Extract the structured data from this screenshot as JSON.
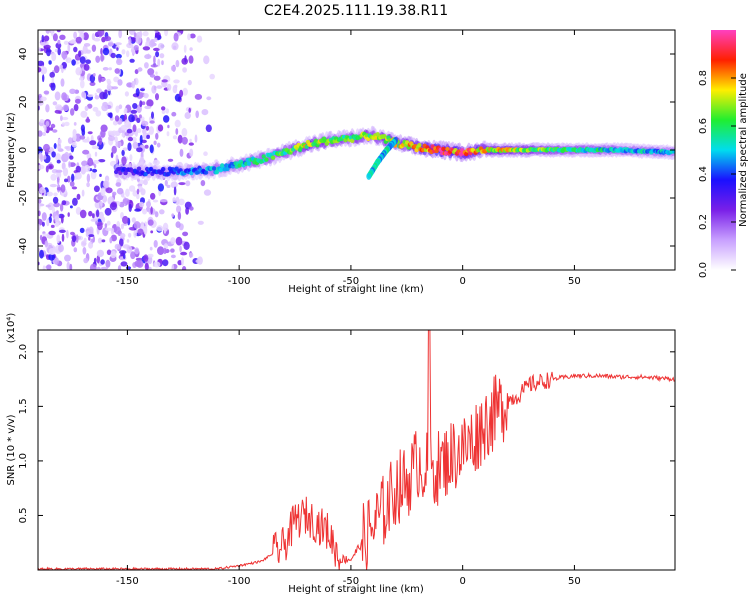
{
  "title": "C2E4.2025.111.19.38.R11",
  "chart_data": [
    {
      "type": "heatmap",
      "xlabel": "Height of straight line (km)",
      "ylabel": "Frequency (Hz)",
      "xlim": [
        -190,
        95
      ],
      "ylim": [
        -50,
        50
      ],
      "x_ticks": [
        -150,
        -100,
        -50,
        0,
        50
      ],
      "y_ticks": [
        -40,
        -20,
        0,
        20,
        40
      ],
      "colorbar": {
        "label": "Normalized spectral amplitude",
        "range": [
          0,
          1
        ],
        "ticks": [
          0.0,
          0.2,
          0.4,
          0.6,
          0.8
        ],
        "colors": [
          "#ffffff",
          "#c8a0ff",
          "#7a20e8",
          "#1a10ff",
          "#00ddee",
          "#20ee30",
          "#ffee00",
          "#ff2000",
          "#ff40c0"
        ]
      },
      "noise_region_x": [
        -190,
        -110
      ],
      "ridge": [
        {
          "x": -155,
          "f": -9,
          "a": 0.35
        },
        {
          "x": -140,
          "f": -9,
          "a": 0.4
        },
        {
          "x": -125,
          "f": -9,
          "a": 0.45
        },
        {
          "x": -110,
          "f": -8,
          "a": 0.5
        },
        {
          "x": -100,
          "f": -6,
          "a": 0.55
        },
        {
          "x": -90,
          "f": -4,
          "a": 0.6
        },
        {
          "x": -80,
          "f": -1,
          "a": 0.65
        },
        {
          "x": -70,
          "f": 2,
          "a": 0.75
        },
        {
          "x": -60,
          "f": 4,
          "a": 0.7
        },
        {
          "x": -50,
          "f": 5,
          "a": 0.65
        },
        {
          "x": -40,
          "f": 6,
          "a": 0.7
        },
        {
          "x": -30,
          "f": 3,
          "a": 0.75
        },
        {
          "x": -20,
          "f": 1,
          "a": 0.85
        },
        {
          "x": -10,
          "f": 0,
          "a": 0.95
        },
        {
          "x": 0,
          "f": -1,
          "a": 0.9
        },
        {
          "x": 10,
          "f": 0,
          "a": 0.8
        },
        {
          "x": 30,
          "f": 0,
          "a": 0.7
        },
        {
          "x": 50,
          "f": 0,
          "a": 0.6
        },
        {
          "x": 70,
          "f": 0,
          "a": 0.55
        },
        {
          "x": 95,
          "f": -1,
          "a": 0.5
        }
      ],
      "branch": [
        {
          "x": -30,
          "f": 4
        },
        {
          "x": -34,
          "f": 0
        },
        {
          "x": -38,
          "f": -5
        },
        {
          "x": -42,
          "f": -11
        }
      ]
    },
    {
      "type": "line",
      "xlabel": "Height of straight line (km)",
      "ylabel": "SNR (10 * v/v)",
      "scale_label": "(x10⁴)",
      "xlim": [
        -190,
        95
      ],
      "ylim": [
        0,
        2.2
      ],
      "x_ticks": [
        -150,
        -100,
        -50,
        0,
        50
      ],
      "y_ticks": [
        0.5,
        1.0,
        1.5,
        2.0
      ],
      "color": "#ee3333",
      "series": {
        "name": "SNR",
        "x": [
          -190,
          -110,
          -100,
          -90,
          -80,
          -75,
          -70,
          -65,
          -60,
          -55,
          -50,
          -45,
          -40,
          -35,
          -30,
          -25,
          -20,
          -15,
          -10,
          -5,
          0,
          5,
          10,
          15,
          20,
          25,
          30,
          40,
          50,
          60,
          70,
          80,
          95
        ],
        "y": [
          0.01,
          0.01,
          0.04,
          0.08,
          0.22,
          0.45,
          0.5,
          0.42,
          0.35,
          0.1,
          0.1,
          0.25,
          0.4,
          0.55,
          0.75,
          0.8,
          1.0,
          0.9,
          0.95,
          1.05,
          1.1,
          1.2,
          1.35,
          1.45,
          1.55,
          1.6,
          1.7,
          1.75,
          1.78,
          1.78,
          1.77,
          1.77,
          1.75
        ]
      }
    }
  ]
}
